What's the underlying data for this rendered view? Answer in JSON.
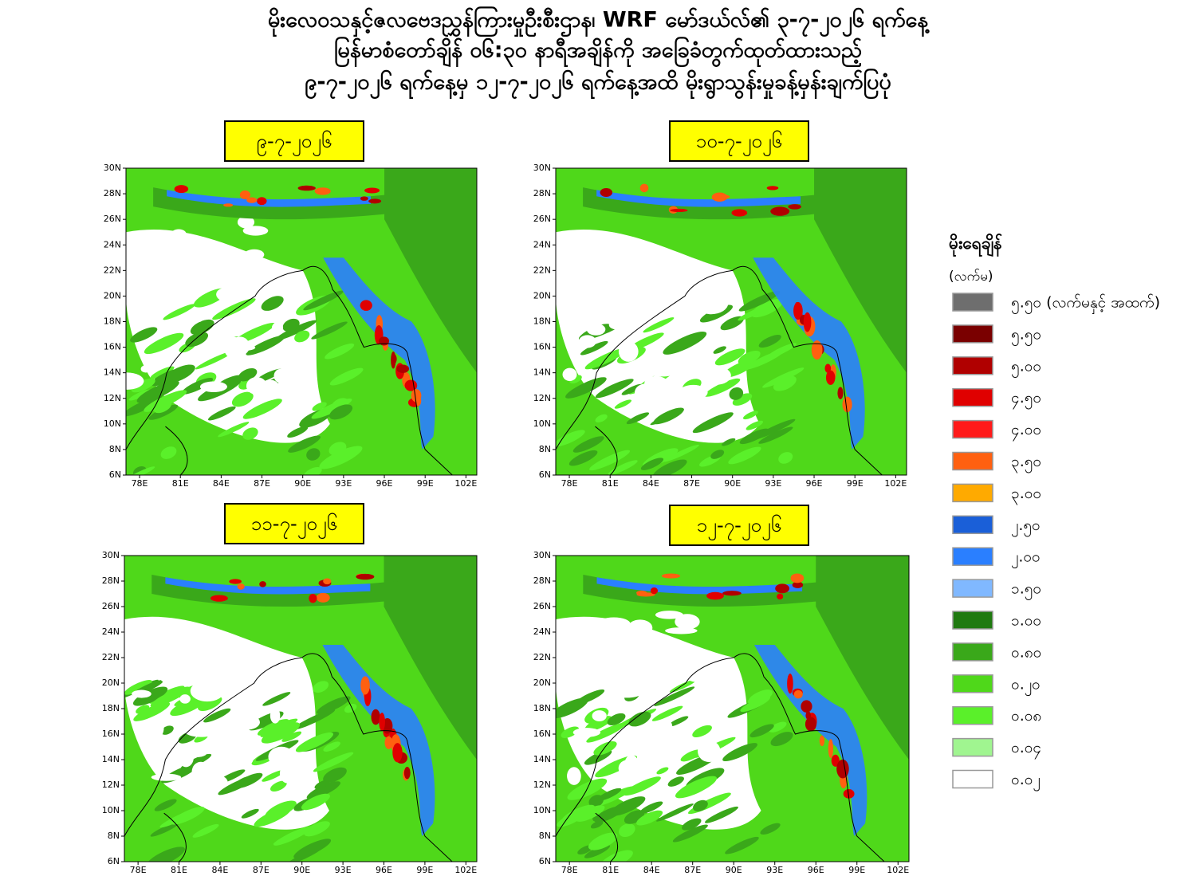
{
  "header": {
    "lines": [
      "မိုးလေဝသနှင့်ဇလဗေဒညွှန်ကြားမှုဦးစီးဌာန၊ WRF မော်ဒယ်လ်၏ ၃-၇-၂၀၂၆ ရက်နေ့",
      "မြန်မာစံတော်ချိန် ၀၆:၃၀ နာရီအချိန်ကို အခြေခံတွက်ထုတ်ထားသည့်",
      "၉-၇-၂၀၂၆ ရက်နေ့မှ ၁၂-၇-၂၀၂၆ ရက်နေ့အထိ မိုးရွာသွန်းမှုခန့်မှန်းချက်ပြပုံ"
    ]
  },
  "panels": [
    {
      "date": "၉-၇-၂၀၂၆"
    },
    {
      "date": "၁၀-၇-၂၀၂၆"
    },
    {
      "date": "၁၁-၇-၂၀၂၆"
    },
    {
      "date": "၁၂-၇-၂၀၂၆"
    }
  ],
  "map_axes": {
    "lat_labels": [
      "6N",
      "8N",
      "10N",
      "12N",
      "14N",
      "16N",
      "18N",
      "20N",
      "22N",
      "24N",
      "26N",
      "28N",
      "30N"
    ],
    "lon_labels": [
      "78E",
      "81E",
      "84E",
      "87E",
      "90E",
      "93E",
      "96E",
      "99E",
      "102E"
    ]
  },
  "legend": {
    "title": "မိုးရေချိန်",
    "unit": "(လက်မ)",
    "items": [
      {
        "label": "၅.၅၀ (လက်မနှင့် အထက်)",
        "color": "#6e6e6e"
      },
      {
        "label": "၅.၅၀",
        "color": "#7a0000"
      },
      {
        "label": "၅.၀၀",
        "color": "#b00000"
      },
      {
        "label": "၄.၅၀",
        "color": "#e00000"
      },
      {
        "label": "၄.၀၀",
        "color": "#ff1a1a"
      },
      {
        "label": "၃.၅၀",
        "color": "#ff6010"
      },
      {
        "label": "၃.၀၀",
        "color": "#ffaa00"
      },
      {
        "label": "၂.၅၀",
        "color": "#1a5fd8"
      },
      {
        "label": "၂.၀၀",
        "color": "#2a7fff"
      },
      {
        "label": "၁.၅၀",
        "color": "#80b8ff"
      },
      {
        "label": "၁.၀၀",
        "color": "#1f7a10"
      },
      {
        "label": "၀.၈၀",
        "color": "#3aa81a"
      },
      {
        "label": "၀.၂၀",
        "color": "#4fd81a"
      },
      {
        "label": "၀.၀၈",
        "color": "#5af02a"
      },
      {
        "label": "၀.၀၄",
        "color": "#a0f590"
      },
      {
        "label": "၀.၀၂",
        "color": "#ffffff"
      }
    ]
  }
}
